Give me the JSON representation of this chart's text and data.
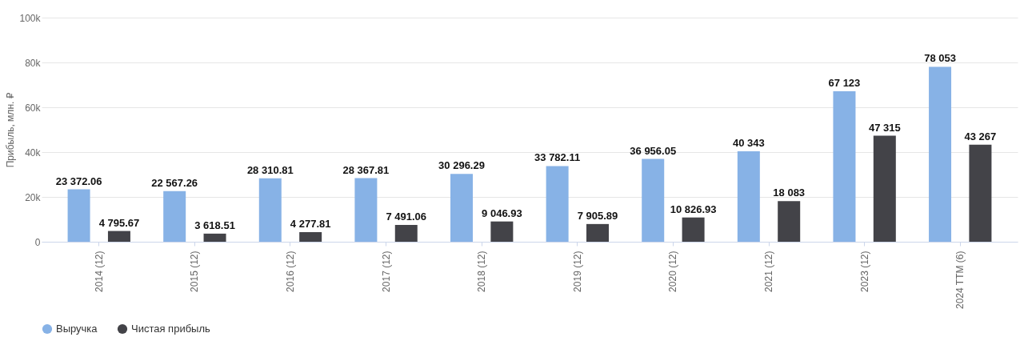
{
  "chart_data": {
    "type": "bar",
    "ylabel": "Прибыль, млн. ₽",
    "categories": [
      "2014 (12)",
      "2015 (12)",
      "2016 (12)",
      "2017 (12)",
      "2018 (12)",
      "2019 (12)",
      "2020 (12)",
      "2021 (12)",
      "2023 (12)",
      "2024 TTM (6)"
    ],
    "series": [
      {
        "name": "Выручка",
        "color": "#87b2e6",
        "values": [
          23372.06,
          22567.26,
          28310.81,
          28367.81,
          30296.29,
          33782.11,
          36956.05,
          40343,
          67123,
          78053
        ],
        "value_labels": [
          "23 372.06",
          "22 567.26",
          "28 310.81",
          "28 367.81",
          "30 296.29",
          "33 782.11",
          "36 956.05",
          "40 343",
          "67 123",
          "78 053"
        ]
      },
      {
        "name": "Чистая прибыль",
        "color": "#434348",
        "values": [
          4795.67,
          3618.51,
          4277.81,
          7491.06,
          9046.93,
          7905.89,
          10826.93,
          18083,
          47315,
          43267
        ],
        "value_labels": [
          "4 795.67",
          "3 618.51",
          "4 277.81",
          "7 491.06",
          "9 046.93",
          "7 905.89",
          "10 826.93",
          "18 083",
          "47 315",
          "43 267"
        ]
      }
    ],
    "ylim": [
      0,
      100000
    ],
    "yticks": [
      0,
      {
        "value": 20000,
        "label": "20k"
      },
      {
        "value": 40000,
        "label": "40k"
      },
      {
        "value": 60000,
        "label": "60k"
      },
      {
        "value": 80000,
        "label": "80k"
      },
      {
        "value": 100000,
        "label": "100k"
      }
    ],
    "grid": "y",
    "legend": "bottom"
  }
}
